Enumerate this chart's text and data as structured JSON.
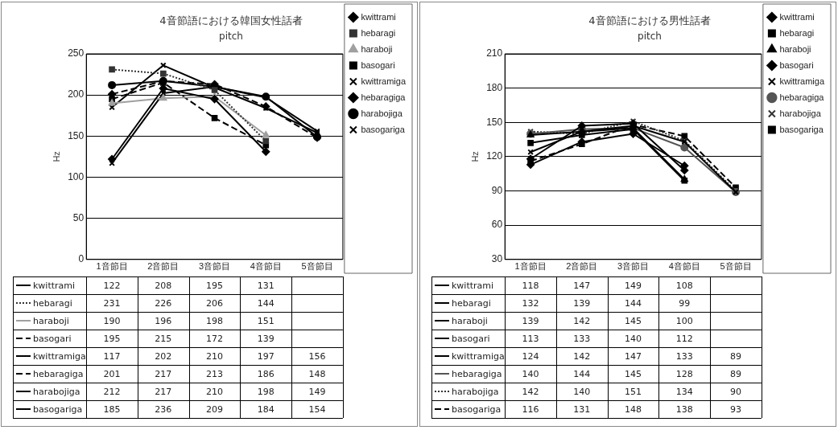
{
  "chart_data": [
    {
      "type": "line",
      "title": "4音節語における韓国女性話者",
      "subtitle": "pitch",
      "ylabel": "Hz",
      "categories": [
        "1音節目",
        "2音節目",
        "3音節目",
        "4音節目",
        "5音節目"
      ],
      "ylim": [
        0,
        250
      ],
      "yticks": [
        0,
        50,
        100,
        150,
        200,
        250
      ],
      "grid": "y",
      "legend": "right",
      "data_labels": true,
      "series": [
        {
          "name": "kwittrami",
          "color": "#000000",
          "marker": "diamond",
          "line_style": "solid",
          "values": [
            122,
            208,
            195,
            131,
            null
          ]
        },
        {
          "name": "hebaragi",
          "color": "#333333",
          "marker": "square",
          "line_style": "dotted",
          "values": [
            231,
            226,
            206,
            144,
            null
          ]
        },
        {
          "name": "haraboji",
          "color": "#a0a0a0",
          "marker": "triangle",
          "line_style": "solid",
          "values": [
            190,
            196,
            198,
            151,
            null
          ]
        },
        {
          "name": "basogari",
          "color": "#000000",
          "marker": "square",
          "line_style": "dashed",
          "values": [
            195,
            215,
            172,
            139,
            null
          ]
        },
        {
          "name": "kwittramiga",
          "color": "#000000",
          "marker": "cross",
          "line_style": "solid",
          "values": [
            117,
            202,
            210,
            197,
            156
          ]
        },
        {
          "name": "hebaragiga",
          "color": "#000000",
          "marker": "diamond",
          "line_style": "dashed",
          "values": [
            201,
            217,
            213,
            186,
            148
          ]
        },
        {
          "name": "harabojiga",
          "color": "#000000",
          "marker": "circle",
          "line_style": "solid",
          "values": [
            212,
            217,
            210,
            198,
            149
          ]
        },
        {
          "name": "basogariga",
          "color": "#000000",
          "marker": "cross",
          "line_style": "solid",
          "values": [
            185,
            236,
            209,
            184,
            154
          ]
        }
      ]
    },
    {
      "type": "line",
      "title": "4音節語における男性話者",
      "subtitle": "pitch",
      "ylabel": "Hz",
      "categories": [
        "1音節目",
        "2音節目",
        "3音節目",
        "4音節目",
        "5音節目"
      ],
      "ylim": [
        30,
        210
      ],
      "yticks": [
        30,
        60,
        90,
        120,
        150,
        180,
        210
      ],
      "grid": "y",
      "legend": "right",
      "data_labels": true,
      "series": [
        {
          "name": "kwittrami",
          "color": "#000000",
          "marker": "diamond",
          "line_style": "solid",
          "values": [
            118,
            147,
            149,
            108,
            null
          ]
        },
        {
          "name": "hebaragi",
          "color": "#000000",
          "marker": "square",
          "line_style": "solid",
          "values": [
            132,
            139,
            144,
            99,
            null
          ]
        },
        {
          "name": "haraboji",
          "color": "#000000",
          "marker": "triangle",
          "line_style": "solid",
          "values": [
            139,
            142,
            145,
            100,
            null
          ]
        },
        {
          "name": "basogari",
          "color": "#000000",
          "marker": "diamond",
          "line_style": "solid",
          "values": [
            113,
            133,
            140,
            112,
            null
          ]
        },
        {
          "name": "kwittramiga",
          "color": "#000000",
          "marker": "cross",
          "line_style": "solid",
          "values": [
            124,
            142,
            147,
            133,
            89
          ]
        },
        {
          "name": "hebaragiga",
          "color": "#555555",
          "marker": "circle",
          "line_style": "solid",
          "values": [
            140,
            144,
            145,
            128,
            89
          ]
        },
        {
          "name": "harabojiga",
          "color": "#333333",
          "marker": "cross",
          "line_style": "dotted",
          "values": [
            142,
            140,
            151,
            134,
            90
          ]
        },
        {
          "name": "basogariga",
          "color": "#000000",
          "marker": "square",
          "line_style": "dashed",
          "values": [
            116,
            131,
            148,
            138,
            93
          ]
        }
      ]
    }
  ]
}
